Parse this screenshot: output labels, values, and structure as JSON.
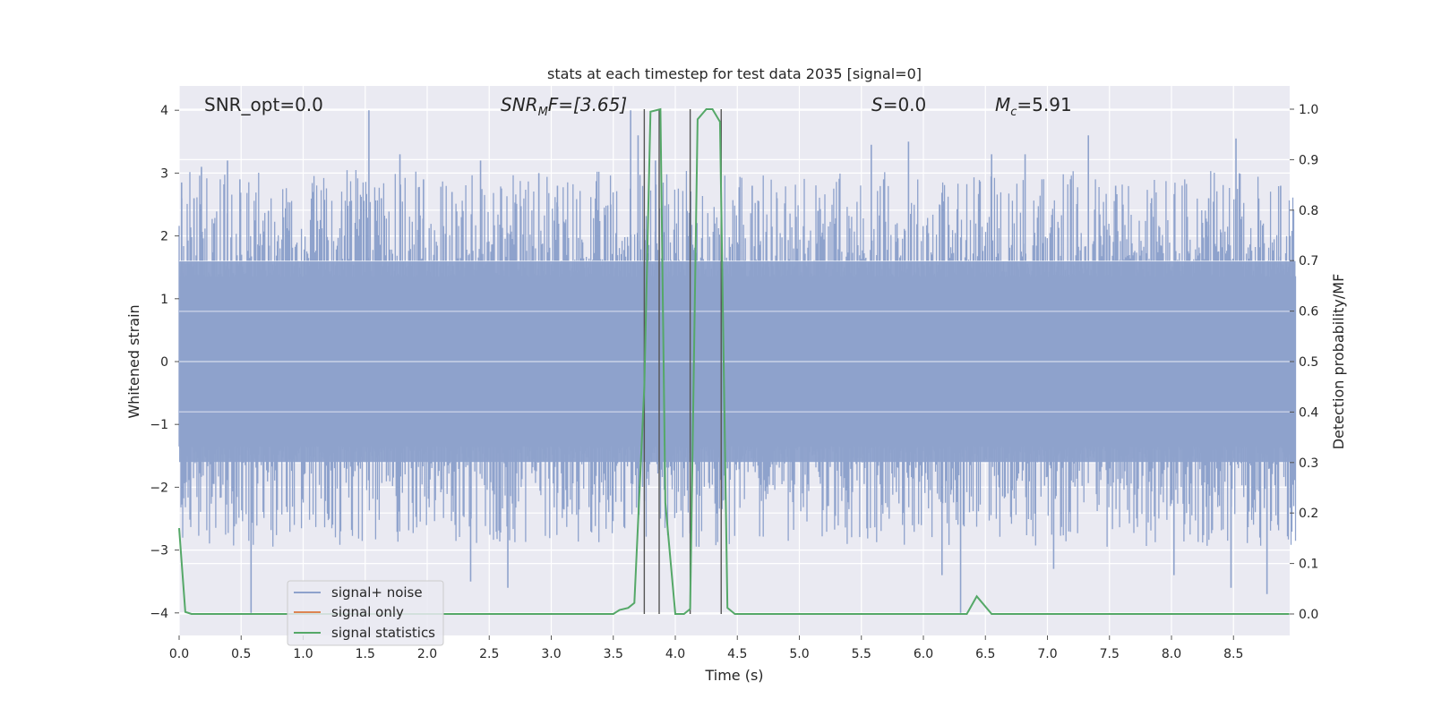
{
  "chart_data": {
    "type": "line",
    "title": "stats at each timestep for test data 2035 [signal=0]",
    "xlabel": "Time (s)",
    "ylabel_left": "Whitened strain",
    "ylabel_right": "Detection probability/MF",
    "xlim": [
      0,
      9.0
    ],
    "ylim_left": [
      -4.4,
      4.4
    ],
    "ylim_right": [
      -0.047,
      1.047
    ],
    "x_ticks": [
      "0.0",
      "0.5",
      "1.0",
      "1.5",
      "2.0",
      "2.5",
      "3.0",
      "3.5",
      "4.0",
      "4.5",
      "5.0",
      "5.5",
      "6.0",
      "6.5",
      "7.0",
      "7.5",
      "8.0",
      "8.5"
    ],
    "y_left_ticks": [
      "4",
      "3",
      "2",
      "1",
      "0",
      "−1",
      "−2",
      "−3",
      "−4"
    ],
    "y_right_ticks": [
      "1.0",
      "0.9",
      "0.8",
      "0.7",
      "0.6",
      "0.5",
      "0.4",
      "0.3",
      "0.2",
      "0.1",
      "0.0"
    ],
    "grid": true,
    "legend_position": "lower-left",
    "annotations": {
      "snr_opt": "SNR_opt=0.0",
      "snr_mf_var": "SNR",
      "snr_mf_sub": "M",
      "snr_mf_rest": "F=[3.65]",
      "s_var": "S",
      "s_rest": "=0.0",
      "mc_var": "M",
      "mc_sub": "c",
      "mc_rest": "=5.91"
    },
    "series": [
      {
        "name": "signal+ noise",
        "color": "#8ea2cc",
        "description_type": "noise",
        "band_abs": 1.6,
        "peak_samples": [
          [
            0.02,
            2.85
          ],
          [
            0.12,
            2.6
          ],
          [
            0.18,
            3.1
          ],
          [
            0.28,
            2.2
          ],
          [
            0.39,
            3.2
          ],
          [
            0.49,
            2.9
          ],
          [
            0.58,
            -4.0
          ],
          [
            0.72,
            2.4
          ],
          [
            0.88,
            2.1
          ],
          [
            1.08,
            2.7
          ],
          [
            1.31,
            2.4
          ],
          [
            1.53,
            4.0
          ],
          [
            1.63,
            2.6
          ],
          [
            1.78,
            3.3
          ],
          [
            1.97,
            2.9
          ],
          [
            2.2,
            2.7
          ],
          [
            2.35,
            -3.5
          ],
          [
            2.43,
            3.2
          ],
          [
            2.65,
            -3.6
          ],
          [
            2.9,
            3.0
          ],
          [
            3.05,
            2.8
          ],
          [
            3.48,
            2.5
          ],
          [
            3.64,
            4.0
          ],
          [
            3.7,
            3.6
          ],
          [
            3.84,
            3.2
          ],
          [
            4.13,
            2.1
          ],
          [
            4.42,
            -1.7
          ],
          [
            4.62,
            2.8
          ],
          [
            4.82,
            2.6
          ],
          [
            5.15,
            2.4
          ],
          [
            5.58,
            3.45
          ],
          [
            5.68,
            2.9
          ],
          [
            5.88,
            3.5
          ],
          [
            6.13,
            2.5
          ],
          [
            6.15,
            -3.4
          ],
          [
            6.3,
            -4.0
          ],
          [
            6.55,
            3.3
          ],
          [
            6.82,
            3.3
          ],
          [
            7.05,
            -3.3
          ],
          [
            7.33,
            3.6
          ],
          [
            7.55,
            2.8
          ],
          [
            7.84,
            2.6
          ],
          [
            8.02,
            -3.4
          ],
          [
            8.3,
            2.6
          ],
          [
            8.48,
            -3.6
          ],
          [
            8.52,
            3.55
          ],
          [
            8.77,
            -3.7
          ],
          [
            8.88,
            2.8
          ]
        ]
      },
      {
        "name": "signal only",
        "color": "#dd8452",
        "x": [
          0,
          9.0
        ],
        "y": [
          0,
          0
        ]
      },
      {
        "name": "signal statistics",
        "color": "#55a868",
        "x": [
          0.0,
          0.05,
          0.1,
          3.5,
          3.55,
          3.62,
          3.67,
          3.75,
          3.8,
          3.88,
          3.92,
          4.0,
          4.07,
          4.12,
          4.18,
          4.25,
          4.3,
          4.36,
          4.42,
          4.48,
          6.35,
          6.43,
          6.55,
          8.95
        ],
        "y": [
          0.17,
          0.004,
          0.0,
          0.0,
          0.008,
          0.012,
          0.022,
          0.45,
          0.995,
          1.0,
          0.22,
          0.0,
          0.0,
          0.01,
          0.98,
          1.0,
          1.0,
          0.975,
          0.012,
          0.0,
          0.0,
          0.035,
          0.0,
          0.0
        ]
      }
    ],
    "vertical_markers": {
      "color": "#555555",
      "x": [
        3.75,
        3.87,
        4.12,
        4.37
      ],
      "y_range_prob": [
        0.0,
        1.0
      ]
    }
  }
}
